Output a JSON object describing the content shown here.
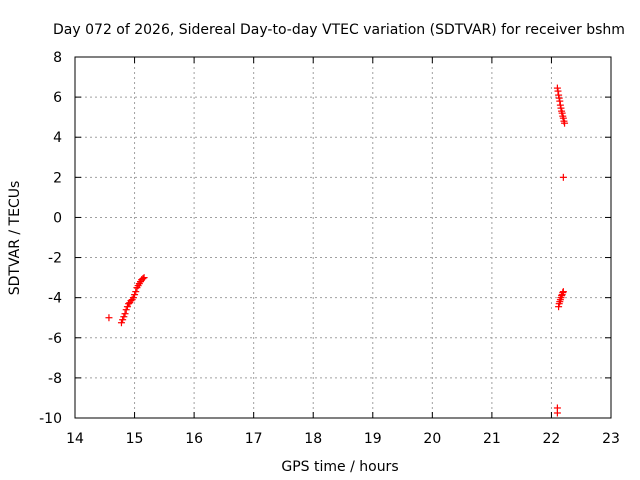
{
  "chart_data": {
    "type": "scatter",
    "title": "Day 072 of 2026, Sidereal Day-to-day VTEC variation (SDTVAR) for receiver bshm",
    "xlabel": "GPS time / hours",
    "ylabel": "SDTVAR / TECUs",
    "xlim": [
      14,
      23
    ],
    "ylim": [
      -10,
      8
    ],
    "xticks": [
      14,
      15,
      16,
      17,
      18,
      19,
      20,
      21,
      22,
      23
    ],
    "yticks": [
      -10,
      -8,
      -6,
      -4,
      -2,
      0,
      2,
      4,
      6,
      8
    ],
    "grid": true,
    "marker": "+",
    "series": [
      {
        "name": "SDTVAR",
        "color": "#ff0000",
        "x": [
          14.57,
          14.78,
          14.8,
          14.82,
          14.84,
          14.86,
          14.88,
          14.9,
          14.92,
          14.94,
          14.96,
          14.98,
          15.0,
          15.02,
          15.04,
          15.06,
          15.08,
          15.1,
          15.12,
          15.14,
          15.16,
          22.1,
          22.11,
          22.12,
          22.13,
          22.14,
          22.15,
          22.16,
          22.17,
          22.18,
          22.19,
          22.2,
          22.21,
          22.22,
          22.2,
          22.12,
          22.13,
          22.14,
          22.15,
          22.16,
          22.17,
          22.18,
          22.19,
          22.2,
          22.1,
          22.1
        ],
        "y": [
          -5.0,
          -5.25,
          -5.1,
          -4.95,
          -4.8,
          -4.6,
          -4.45,
          -4.3,
          -4.25,
          -4.15,
          -4.1,
          -4.0,
          -3.85,
          -3.7,
          -3.5,
          -3.4,
          -3.3,
          -3.2,
          -3.1,
          -3.05,
          -3.0,
          6.45,
          6.3,
          6.1,
          5.95,
          5.8,
          5.6,
          5.45,
          5.3,
          5.2,
          5.05,
          4.95,
          4.8,
          4.7,
          2.0,
          -4.45,
          -4.3,
          -4.2,
          -4.1,
          -4.0,
          -3.9,
          -3.85,
          -3.75,
          -3.7,
          -9.5,
          -9.75
        ]
      }
    ]
  }
}
